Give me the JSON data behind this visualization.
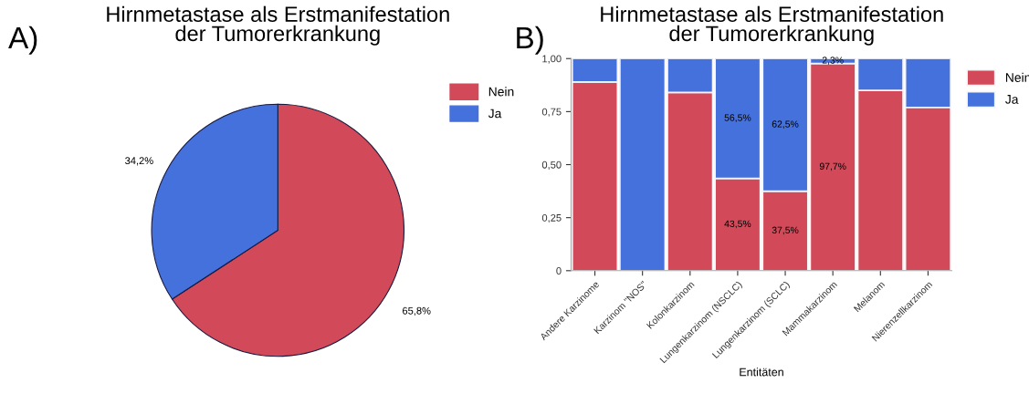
{
  "chart_data": [
    {
      "type": "pie",
      "title": "Hirnmetastase als Erstmanifestation\nder Tumorerkrankung",
      "annotations": [
        "A)"
      ],
      "categories": [
        "Nein",
        "Ja"
      ],
      "values": [
        65.8,
        34.2
      ],
      "colors": [
        "#d24a59",
        "#4471dc"
      ],
      "value_labels": [
        "65,8%",
        "34,2%"
      ],
      "legend": "top right"
    },
    {
      "type": "bar",
      "title": "Hirnmetastase als Erstmanifestation\nder Tumorerkrankung",
      "annotations": [
        "B)"
      ],
      "xlabel": "Entitäten",
      "stacked": true,
      "legend": "top right",
      "categories": [
        "Andere Karzinome",
        "Karzinom \"NOS\"",
        "Kolonkarzinom",
        "Lungenkarzinom (NSCLC)",
        "Lungenkarzinom (SCLC)",
        "Mammakarzinom",
        "Melanom",
        "Nierenzellkarzinom"
      ],
      "ylim": [
        0,
        1
      ],
      "yticks": [
        0,
        {
          "value": 0.25,
          "label": "0,25"
        },
        {
          "value": 0.5,
          "label": "0,50"
        },
        {
          "value": 0.75,
          "label": "0,75"
        },
        {
          "value": 1,
          "label": "1,00"
        }
      ],
      "series": [
        {
          "name": "Nein",
          "color": "#d24a59",
          "values": [
            0.89,
            0,
            0.84,
            0.435,
            0.375,
            0.977,
            0.85,
            0.77
          ],
          "value_labels": [
            null,
            null,
            null,
            "43,5%",
            "37,5%",
            "97,7%",
            null,
            null
          ]
        },
        {
          "name": "Ja",
          "color": "#4471dc",
          "values": [
            0.11,
            1,
            0.16,
            0.565,
            0.625,
            0.023,
            0.15,
            0.23
          ],
          "value_labels": [
            null,
            null,
            null,
            "56,5%",
            "62,5%",
            "2,3%",
            null,
            null
          ]
        }
      ]
    }
  ]
}
